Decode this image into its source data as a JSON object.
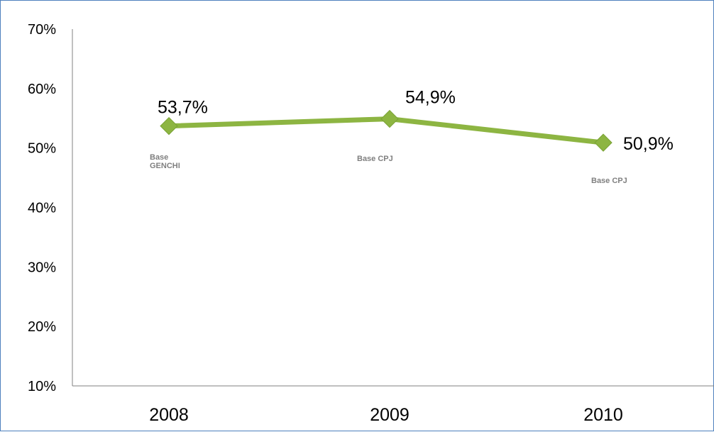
{
  "chart_data": {
    "type": "line",
    "title": "",
    "xlabel": "",
    "ylabel": "",
    "categories": [
      "2008",
      "2009",
      "2010"
    ],
    "series": [
      {
        "values": [
          53.7,
          54.9,
          50.9
        ],
        "labels": [
          "53,7%",
          "54,9%",
          "50,9%"
        ],
        "color": "#8db542"
      }
    ],
    "ylim": [
      10,
      70
    ],
    "yticks": [
      10,
      20,
      30,
      40,
      50,
      60,
      70
    ],
    "ytick_labels": [
      "10%",
      "20%",
      "30%",
      "40%",
      "50%",
      "60%",
      "70%"
    ],
    "grid": false,
    "legend": "none",
    "annotations": [
      {
        "category": "2008",
        "lines": [
          "Base",
          "GENCHI"
        ]
      },
      {
        "category": "2009",
        "lines": [
          "Base CPJ"
        ]
      },
      {
        "category": "2010",
        "lines": [
          "Base CPJ"
        ]
      }
    ],
    "axis_color": "#808080",
    "frame_color": "#4f81bd"
  }
}
